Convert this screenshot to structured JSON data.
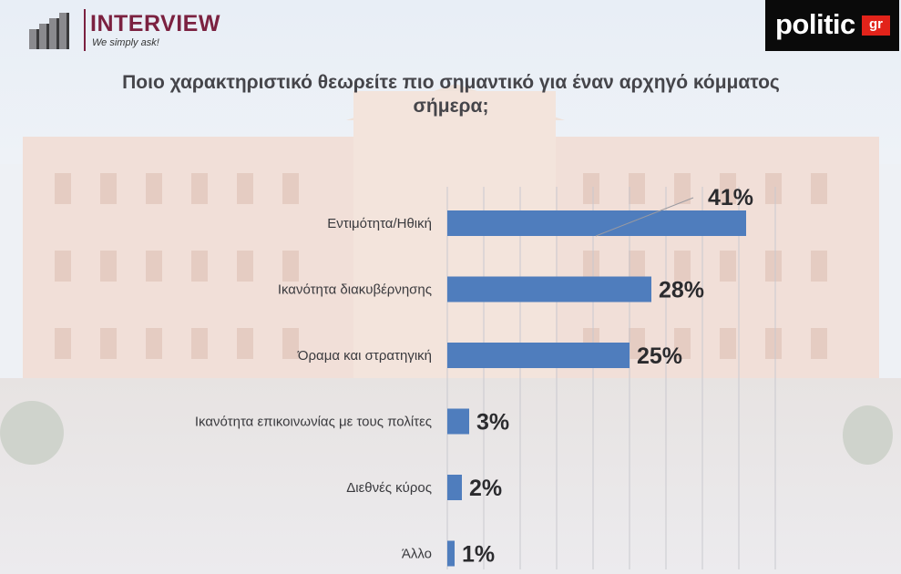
{
  "brand": {
    "name": "INTERVIEW",
    "tagline": "We simply ask!",
    "partner_main": "politic",
    "partner_suffix": "gr"
  },
  "colors": {
    "bar": "#4f7dbd",
    "brand": "#7b2140",
    "partner_accent": "#e2231a"
  },
  "chart_data": {
    "type": "bar",
    "orientation": "horizontal",
    "title": "Ποιο χαρακτηριστικό θεωρείτε πιο σημαντικό για έναν αρχηγό κόμματος σήμερα;",
    "categories": [
      "Εντιμότητα/Ηθική",
      "Ικανότητα διακυβέρνησης",
      "Όραμα και στρατηγική",
      "Ικανότητα επικοινωνίας με τους πολίτες",
      "Διεθνές κύρος",
      "Άλλο"
    ],
    "values": [
      41,
      28,
      25,
      3,
      2,
      1
    ],
    "value_labels": [
      "41%",
      "28%",
      "25%",
      "3%",
      "2%",
      "1%"
    ],
    "unit": "%",
    "xlim": [
      0,
      45
    ],
    "grid": true,
    "legend": "none"
  }
}
